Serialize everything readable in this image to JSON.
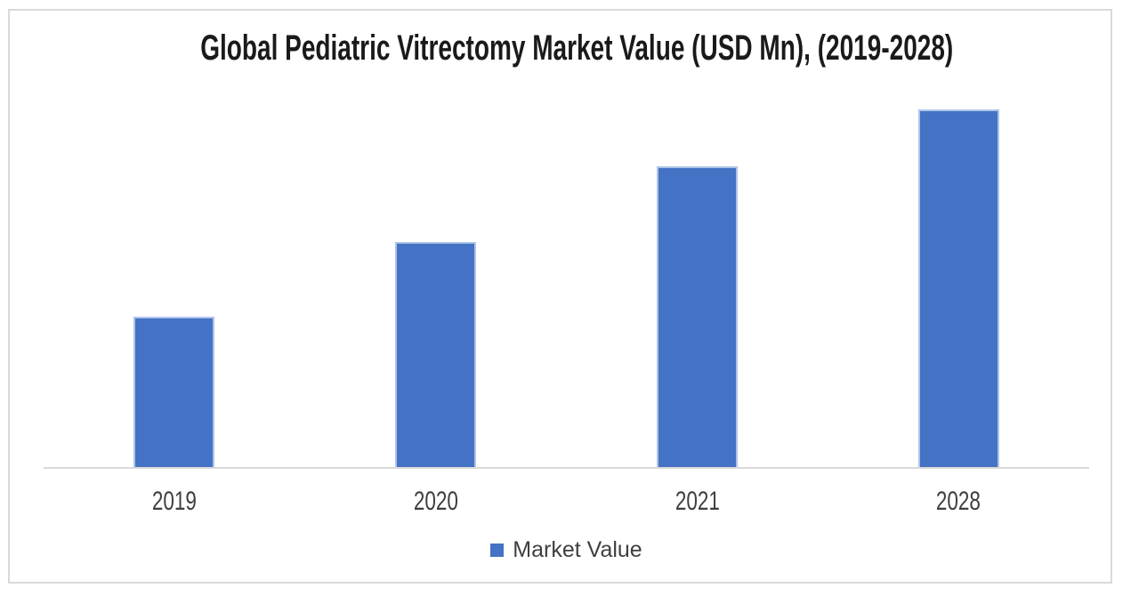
{
  "chart_data": {
    "type": "bar",
    "title": "Global Pediatric Vitrectomy Market Value (USD Mn), (2019-2028)",
    "categories": [
      "2019",
      "2020",
      "2021",
      "2028"
    ],
    "series": [
      {
        "name": "Market Value",
        "values": [
          42,
          63,
          84,
          100
        ]
      }
    ],
    "xlabel": "",
    "ylabel": "",
    "ylim": [
      0,
      108
    ],
    "y_axis_visible": false,
    "gridlines": false,
    "legend_position": "bottom",
    "value_note": "No y-axis ticks or data labels are shown in the image; values are relative bar heights normalized to 2028 = 100"
  },
  "colors": {
    "bar_fill": "#4472C4",
    "bar_border": "#AEC4E9",
    "axis_line": "#D9D9D9",
    "frame_border": "#D9D9D9",
    "title_text": "#1A1A1A",
    "label_text": "#3F3F3F",
    "background": "#FFFFFF"
  }
}
